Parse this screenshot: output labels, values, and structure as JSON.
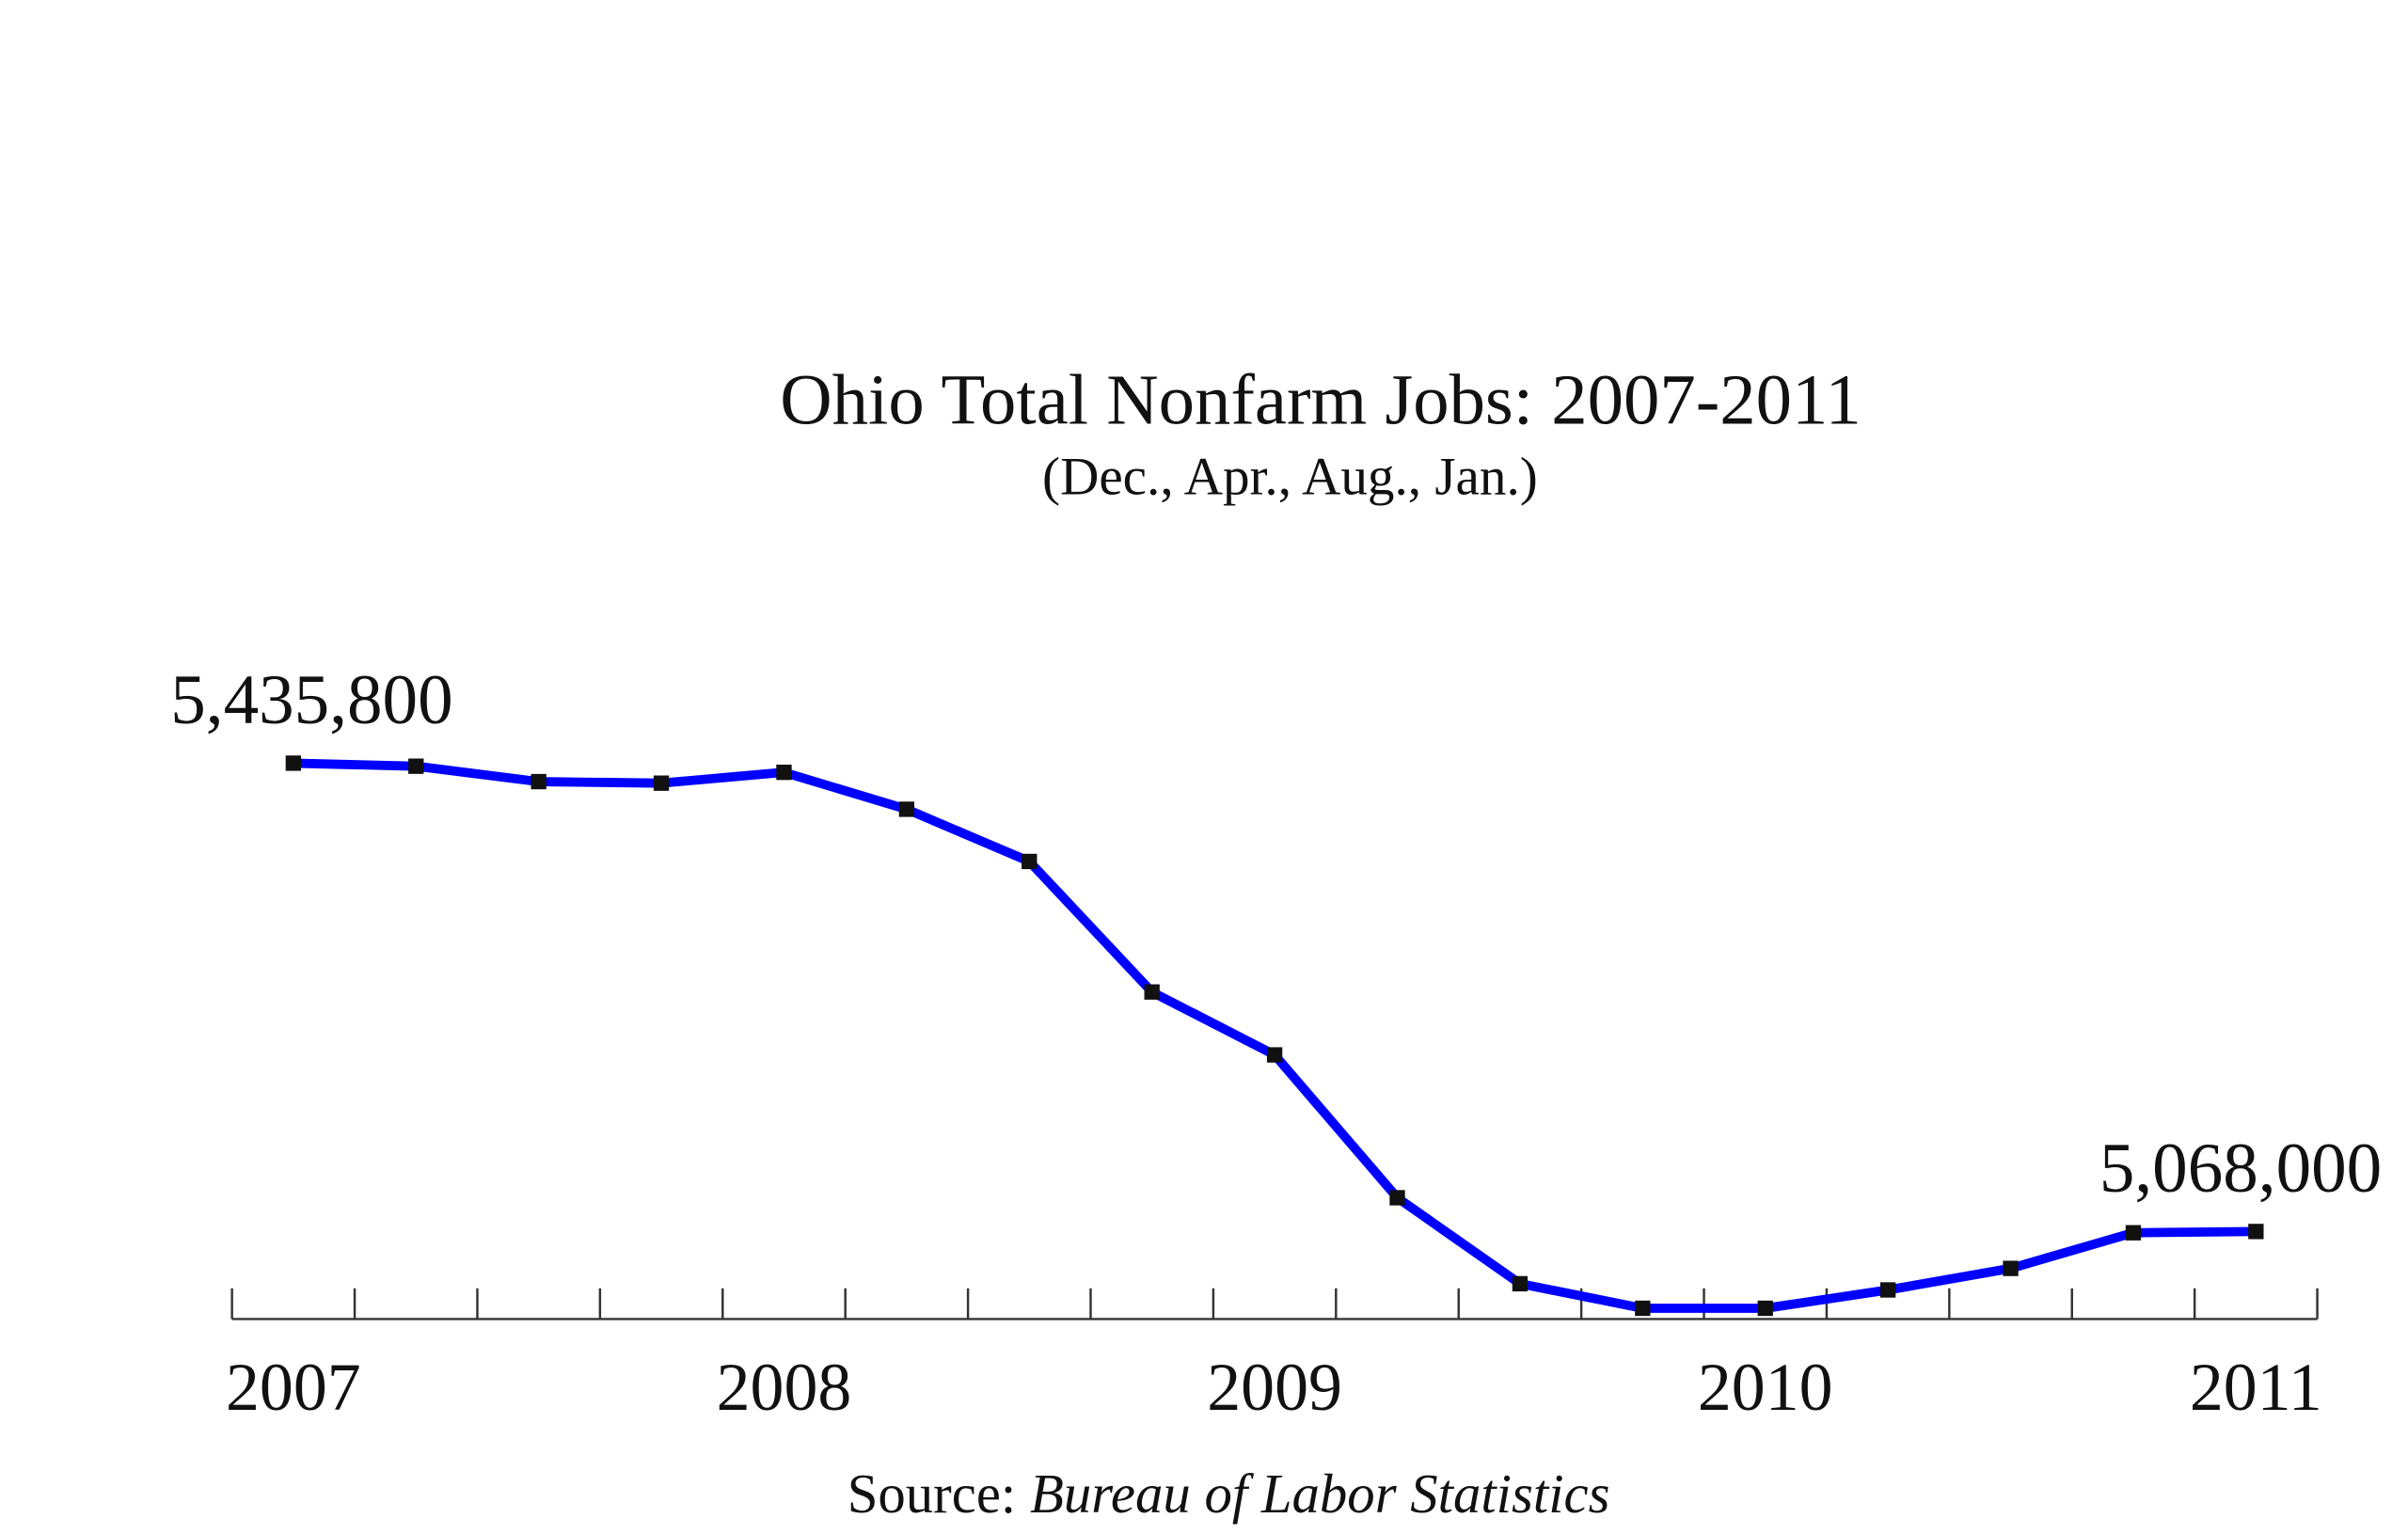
{
  "chart_data": {
    "type": "line",
    "title": "Ohio Total Nonfarm Jobs: 2007-2011",
    "subtitle": "(Dec., Apr., Aug., Jan.)",
    "source_label": "Source:",
    "source": "Bureau of Labor Statistics",
    "categories": [
      "2007",
      null,
      null,
      null,
      "2008",
      null,
      null,
      null,
      "2009",
      null,
      null,
      null,
      "2010",
      null,
      null,
      null,
      "2011"
    ],
    "series": [
      {
        "color": "#0000ff",
        "values": [
          5435800,
          5433400,
          5421300,
          5420100,
          5428600,
          5399600,
          5358600,
          5256100,
          5206700,
          5094500,
          5027000,
          5007700,
          5007700,
          5022100,
          5039000,
          5067000,
          5068000
        ],
        "value_labels": [
          "5,435,800",
          null,
          null,
          null,
          null,
          null,
          null,
          null,
          null,
          null,
          null,
          null,
          null,
          null,
          null,
          null,
          "5,068,000"
        ]
      }
    ]
  }
}
